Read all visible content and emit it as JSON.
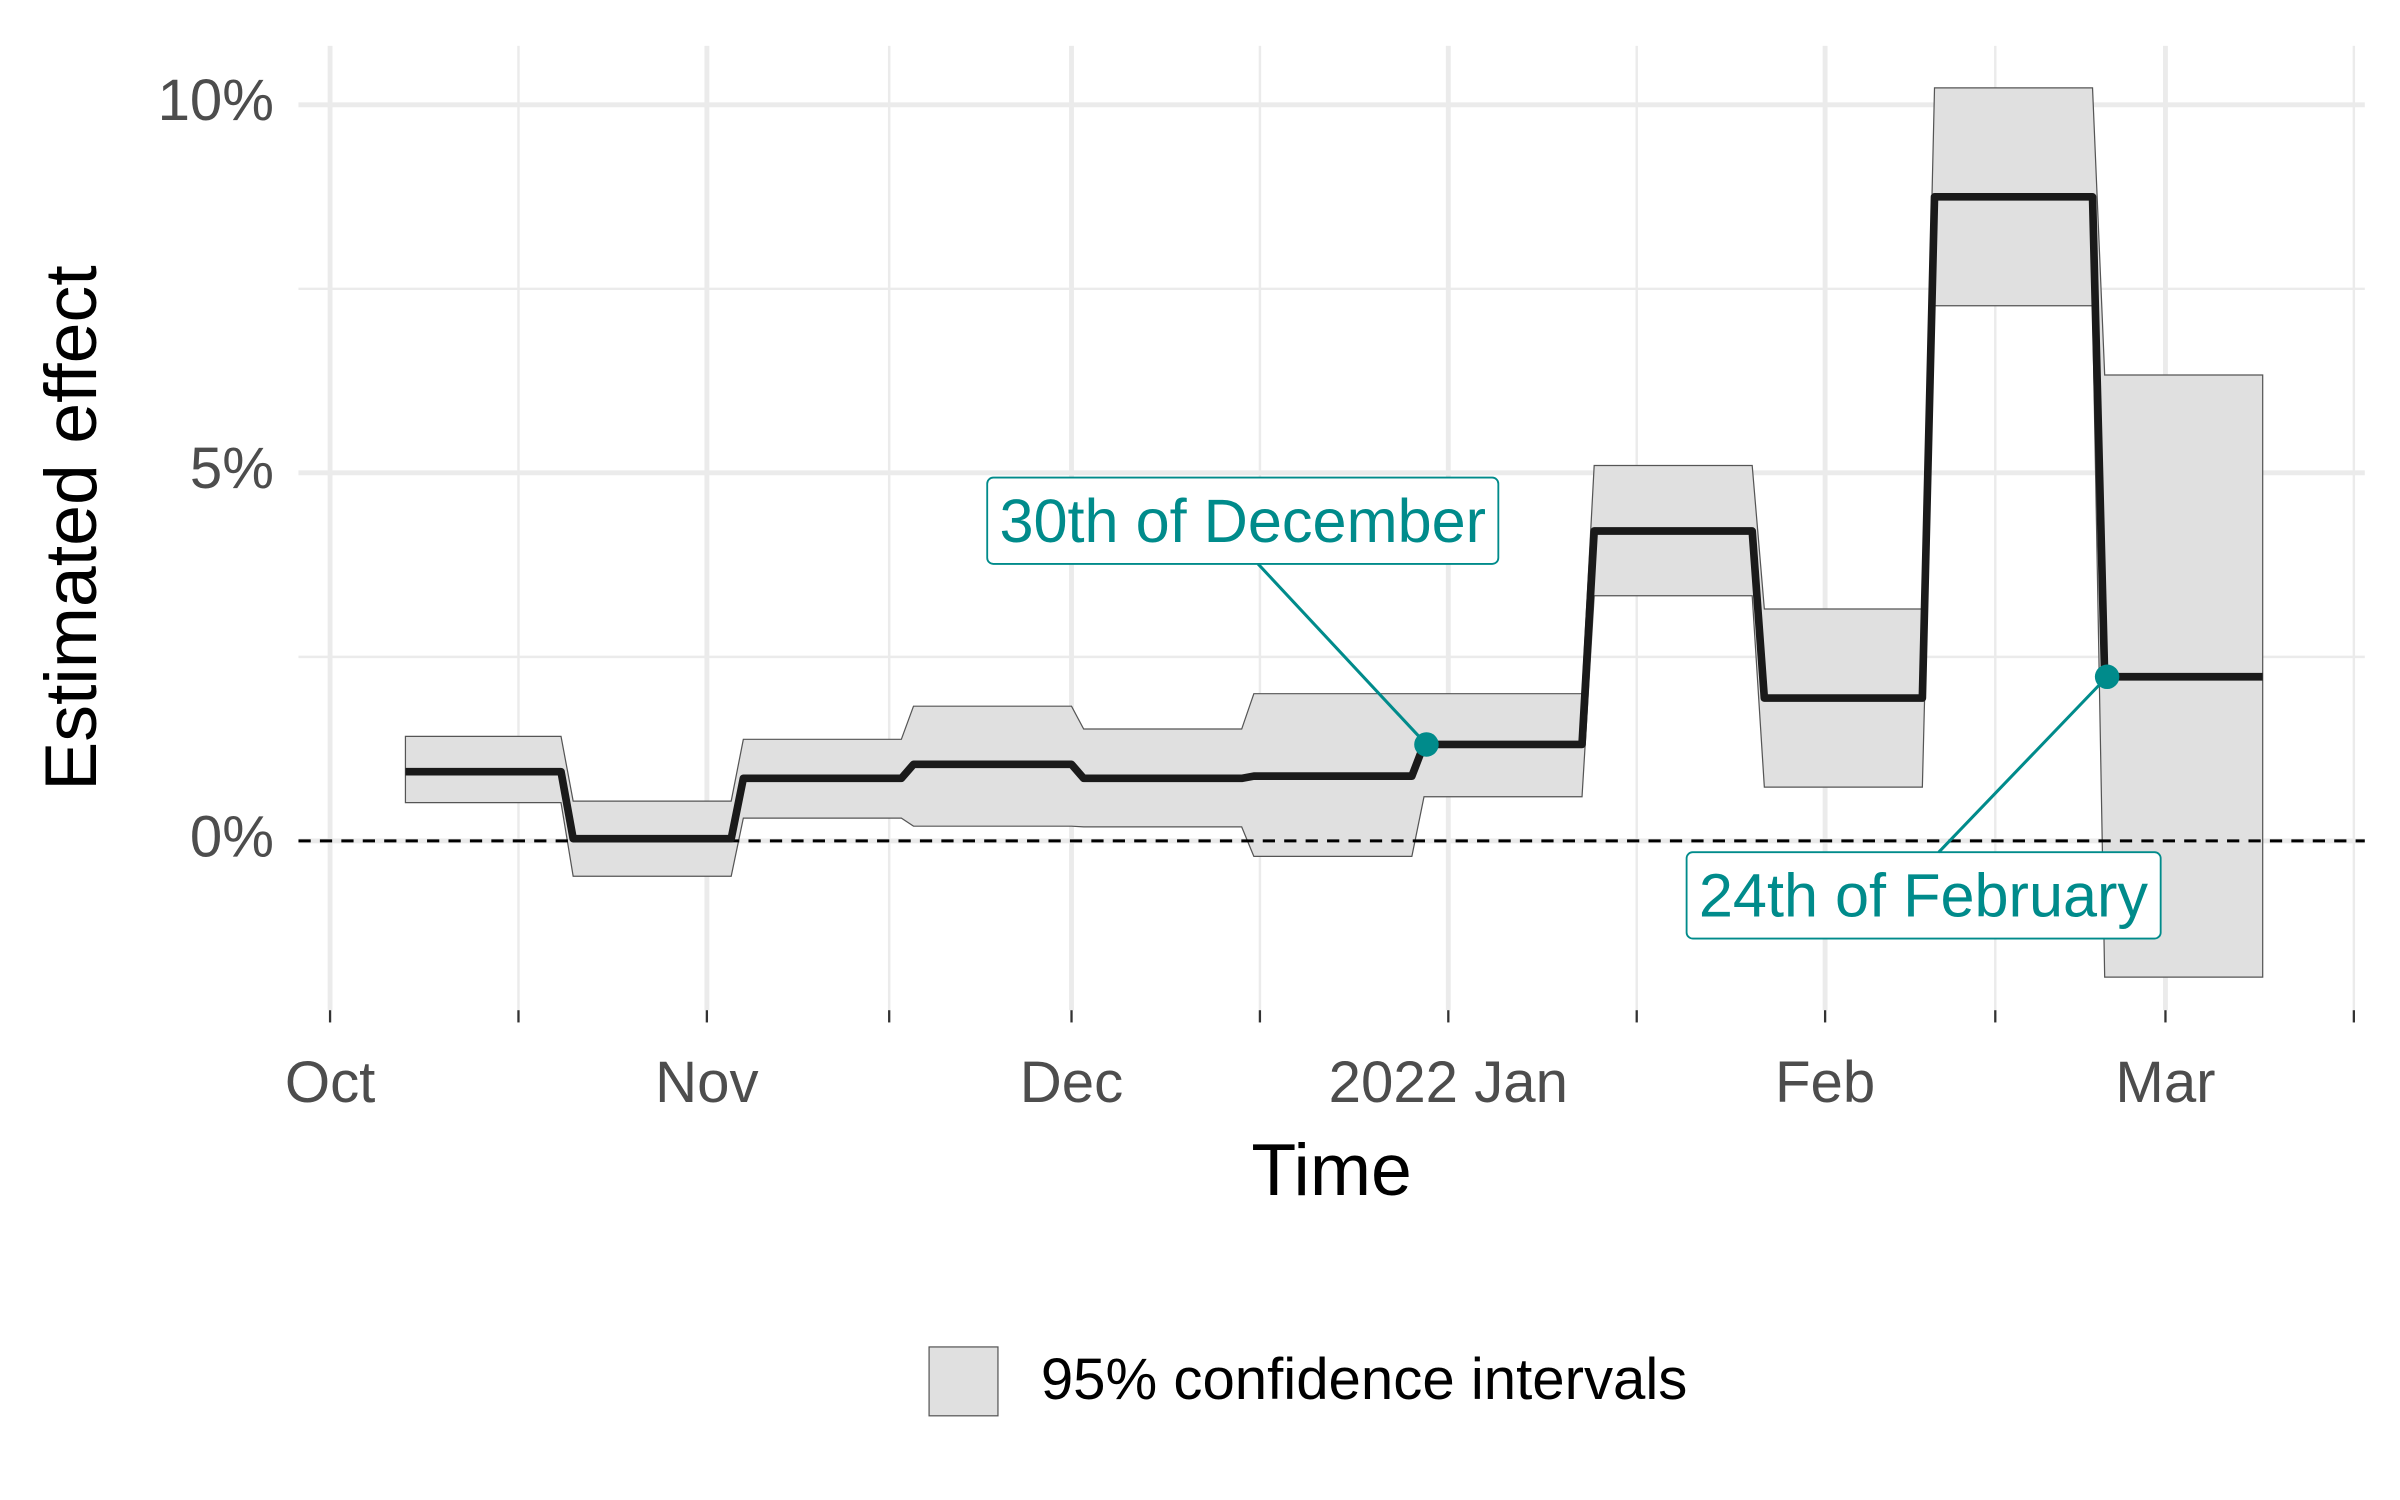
{
  "chart_data": {
    "type": "line",
    "x_label": "Time",
    "y_label": "Estimated effect",
    "x": [
      6.2,
      19,
      20,
      33,
      34,
      47,
      48,
      61,
      62,
      75,
      76,
      89,
      90,
      103,
      104,
      117,
      118,
      131,
      132,
      145,
      146,
      159
    ],
    "series": [
      {
        "color": "#1a1a1a",
        "values": [
          0.94,
          0.94,
          0.03,
          0.03,
          0.85,
          0.85,
          1.04,
          1.04,
          0.85,
          0.85,
          0.88,
          0.88,
          1.31,
          1.31,
          4.21,
          4.21,
          1.94,
          1.94,
          8.75,
          8.75,
          2.23,
          2.23
        ]
      }
    ],
    "band": {
      "name": "95% confidence intervals",
      "color": "#e0e0e0",
      "upper": [
        1.42,
        1.42,
        0.54,
        0.54,
        1.38,
        1.38,
        1.83,
        1.83,
        1.52,
        1.52,
        2.0,
        2.0,
        2.0,
        2.0,
        5.1,
        5.1,
        3.15,
        3.15,
        10.23,
        10.23,
        6.33,
        6.33
      ],
      "lower": [
        0.52,
        0.52,
        -0.48,
        -0.48,
        0.31,
        0.31,
        0.2,
        0.2,
        0.19,
        0.19,
        -0.21,
        -0.21,
        0.6,
        0.6,
        3.33,
        3.33,
        0.73,
        0.73,
        7.27,
        7.27,
        -1.85,
        -1.85
      ]
    },
    "xlim": [
      -2.6,
      167.4
    ],
    "xticks": [
      {
        "value": 0,
        "label": "Oct"
      },
      {
        "value": 31,
        "label": "Nov"
      },
      {
        "value": 61,
        "label": "Dec"
      },
      {
        "value": 92,
        "label": "2022 Jan"
      },
      {
        "value": 123,
        "label": "Feb"
      },
      {
        "value": 151,
        "label": "Mar"
      }
    ],
    "x_minor_ticks": [
      15.5,
      46,
      76.5,
      107.5,
      137,
      166.5
    ],
    "ylim": [
      -2.3,
      10.8
    ],
    "yticks": [
      {
        "value": 0,
        "label": "0%"
      },
      {
        "value": 5,
        "label": "5%"
      },
      {
        "value": 10,
        "label": "10%"
      }
    ],
    "y_minor_ticks": [
      2.5,
      7.5
    ],
    "reference_line": 0,
    "annotation_color": "#008b8b",
    "annotations": [
      {
        "text": "30th of December",
        "x": 90.2,
        "y": 1.31
      },
      {
        "text": "24th of February",
        "x": 146.2,
        "y": 2.23
      }
    ]
  }
}
